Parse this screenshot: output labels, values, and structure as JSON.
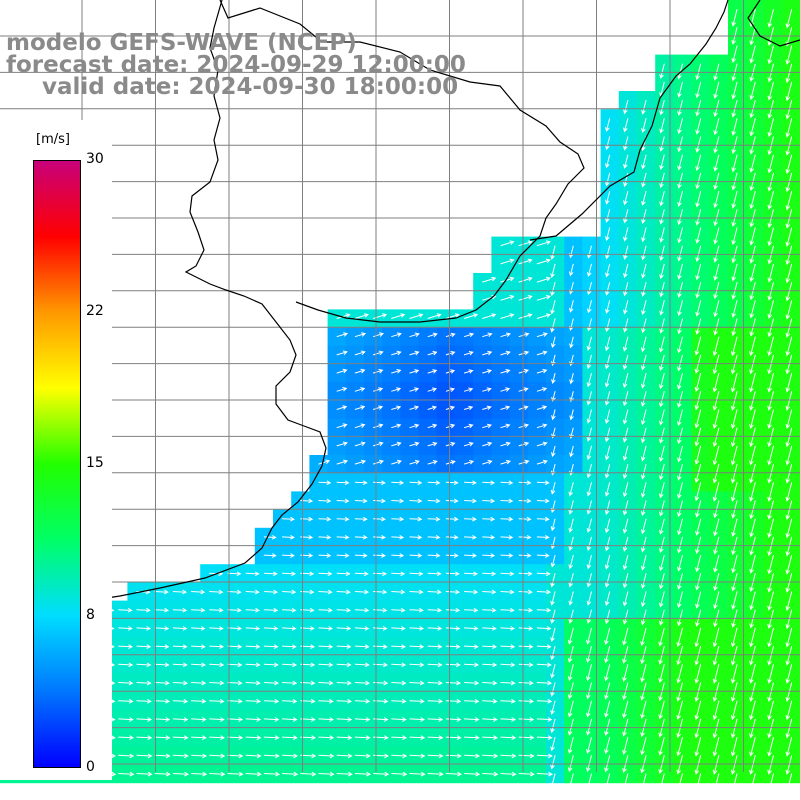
{
  "title": {
    "model": "modelo GEFS-WAVE (NCEP)",
    "forecast": "forecast date: 2024-09-29 12:00:00",
    "valid": "valid date: 2024-09-30 18:00:00"
  },
  "colorbar": {
    "unit": "[m/s]",
    "ticks": [
      "30",
      "22",
      "15",
      "8",
      "0"
    ],
    "tick_values": [
      30,
      22,
      15,
      8,
      0
    ],
    "range": [
      0,
      30
    ],
    "colors": [
      "#0000ff",
      "#0077ff",
      "#00ddff",
      "#00ff66",
      "#22ff00",
      "#ffff00",
      "#ff9900",
      "#ff0000",
      "#c8007a"
    ]
  },
  "map": {
    "field": "wind speed",
    "background": "#ffffff",
    "grid_color": "#7f7f7f",
    "coast_color": "#000000",
    "vector_color": "#ffffff"
  }
}
